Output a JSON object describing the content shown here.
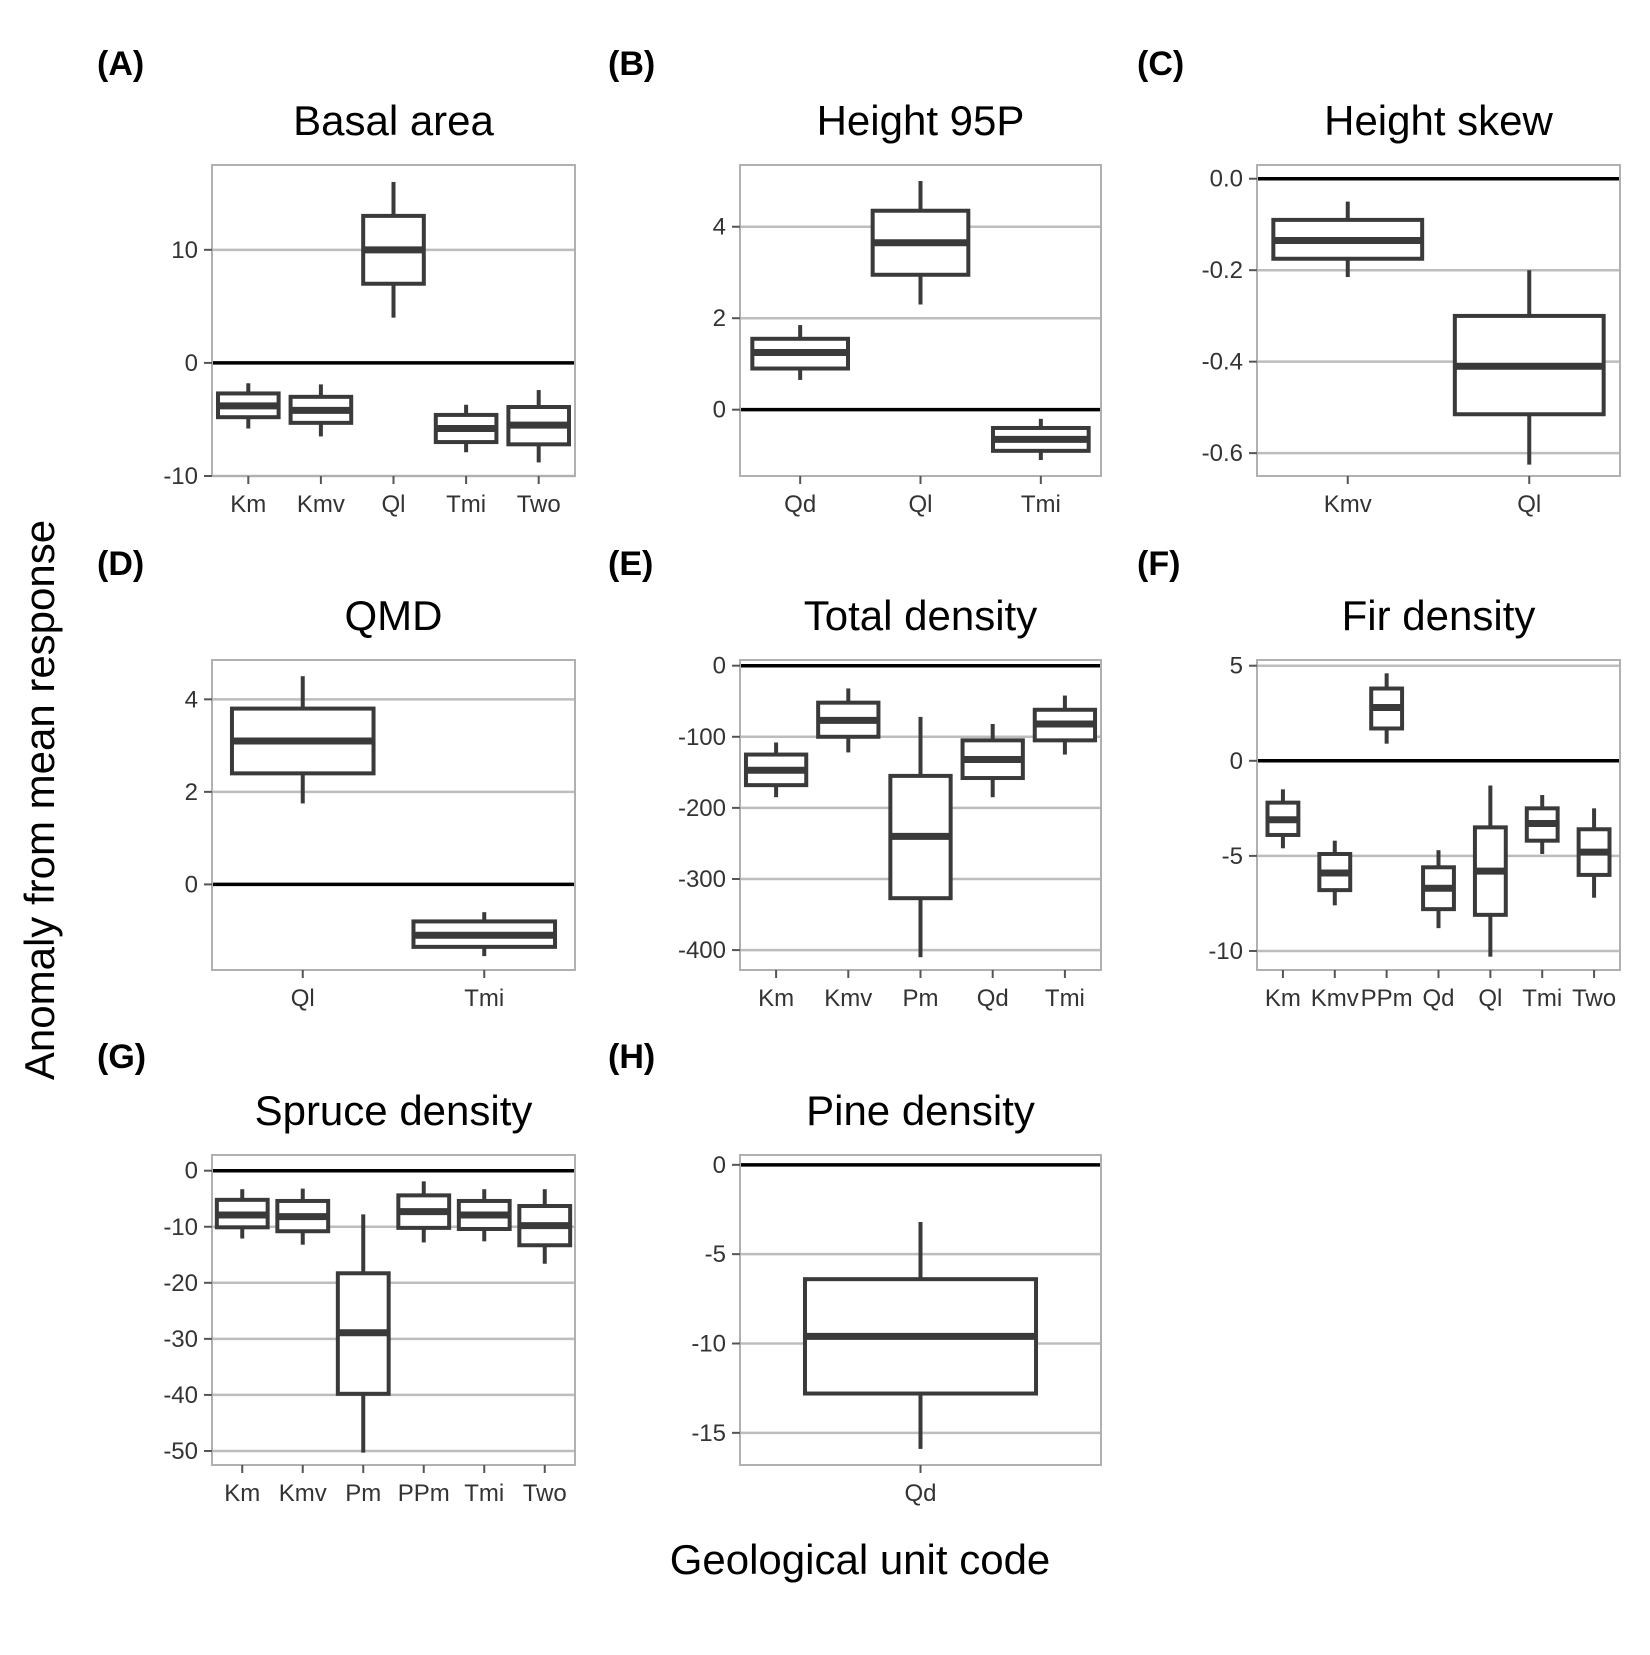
{
  "figure": {
    "ylabel": "Anomaly from mean response",
    "xlabel": "Geological unit code"
  },
  "chart_data": [
    {
      "type": "box",
      "letter": "(A)",
      "title": "Basal area",
      "categories": [
        "Km",
        "Kmv",
        "Ql",
        "Tmi",
        "Two"
      ],
      "boxes": [
        {
          "low": -5.8,
          "q1": -4.8,
          "median": -3.8,
          "q3": -2.7,
          "high": -1.8
        },
        {
          "low": -6.5,
          "q1": -5.3,
          "median": -4.2,
          "q3": -3.0,
          "high": -1.9
        },
        {
          "low": 4.0,
          "q1": 7.0,
          "median": 10.0,
          "q3": 13.0,
          "high": 16.0
        },
        {
          "low": -7.9,
          "q1": -7.0,
          "median": -5.8,
          "q3": -4.6,
          "high": -3.7
        },
        {
          "low": -8.8,
          "q1": -7.2,
          "median": -5.5,
          "q3": -3.9,
          "high": -2.4
        }
      ],
      "ylim": [
        -10,
        17.5
      ],
      "yticks": [
        -10,
        0,
        10
      ],
      "yticklabels": [
        "-10",
        "0",
        "10"
      ],
      "zero_line": 0
    },
    {
      "type": "box",
      "letter": "(B)",
      "title": "Height 95P",
      "categories": [
        "Qd",
        "Ql",
        "Tmi"
      ],
      "boxes": [
        {
          "low": 0.65,
          "q1": 0.9,
          "median": 1.25,
          "q3": 1.55,
          "high": 1.85
        },
        {
          "low": 2.3,
          "q1": 2.95,
          "median": 3.65,
          "q3": 4.35,
          "high": 5.0
        },
        {
          "low": -1.1,
          "q1": -0.9,
          "median": -0.65,
          "q3": -0.4,
          "high": -0.2
        }
      ],
      "ylim": [
        -1.45,
        5.35
      ],
      "yticks": [
        0,
        2,
        4
      ],
      "yticklabels": [
        "0",
        "2",
        "4"
      ],
      "zero_line": 0
    },
    {
      "type": "box",
      "letter": "(C)",
      "title": "Height skew",
      "categories": [
        "Kmv",
        "Ql"
      ],
      "boxes": [
        {
          "low": -0.215,
          "q1": -0.175,
          "median": -0.135,
          "q3": -0.09,
          "high": -0.05
        },
        {
          "low": -0.625,
          "q1": -0.515,
          "median": -0.41,
          "q3": -0.3,
          "high": -0.2
        }
      ],
      "ylim": [
        -0.65,
        0.03
      ],
      "yticks": [
        -0.6,
        -0.4,
        -0.2,
        0.0
      ],
      "yticklabels": [
        "-0.6",
        "-0.4",
        "-0.2",
        "0.0"
      ],
      "zero_line": 0
    },
    {
      "type": "box",
      "letter": "(D)",
      "title": "QMD",
      "categories": [
        "Ql",
        "Tmi"
      ],
      "boxes": [
        {
          "low": 1.75,
          "q1": 2.4,
          "median": 3.1,
          "q3": 3.8,
          "high": 4.5
        },
        {
          "low": -1.55,
          "q1": -1.35,
          "median": -1.1,
          "q3": -0.8,
          "high": -0.6
        }
      ],
      "ylim": [
        -1.85,
        4.85
      ],
      "yticks": [
        0,
        2,
        4
      ],
      "yticklabels": [
        "0",
        "2",
        "4"
      ],
      "zero_line": 0
    },
    {
      "type": "box",
      "letter": "(E)",
      "title": "Total density",
      "categories": [
        "Km",
        "Kmv",
        "Pm",
        "Qd",
        "Tmi"
      ],
      "boxes": [
        {
          "low": -185,
          "q1": -168,
          "median": -147,
          "q3": -125,
          "high": -108
        },
        {
          "low": -122,
          "q1": -100,
          "median": -77,
          "q3": -52,
          "high": -32
        },
        {
          "low": -410,
          "q1": -327,
          "median": -240,
          "q3": -155,
          "high": -72
        },
        {
          "low": -185,
          "q1": -158,
          "median": -132,
          "q3": -105,
          "high": -82
        },
        {
          "low": -125,
          "q1": -105,
          "median": -82,
          "q3": -62,
          "high": -42
        }
      ],
      "ylim": [
        -428,
        8
      ],
      "yticks": [
        -400,
        -300,
        -200,
        -100,
        0
      ],
      "yticklabels": [
        "-400",
        "-300",
        "-200",
        "-100",
        "0"
      ],
      "zero_line": 0
    },
    {
      "type": "box",
      "letter": "(F)",
      "title": "Fir density",
      "categories": [
        "Km",
        "Kmv",
        "PPm",
        "Qd",
        "Ql",
        "Tmi",
        "Two"
      ],
      "boxes": [
        {
          "low": -4.6,
          "q1": -3.9,
          "median": -3.1,
          "q3": -2.2,
          "high": -1.5
        },
        {
          "low": -7.6,
          "q1": -6.8,
          "median": -5.9,
          "q3": -4.9,
          "high": -4.2
        },
        {
          "low": 0.9,
          "q1": 1.7,
          "median": 2.8,
          "q3": 3.8,
          "high": 4.6
        },
        {
          "low": -8.8,
          "q1": -7.8,
          "median": -6.7,
          "q3": -5.6,
          "high": -4.7
        },
        {
          "low": -10.3,
          "q1": -8.1,
          "median": -5.8,
          "q3": -3.5,
          "high": -1.3
        },
        {
          "low": -4.9,
          "q1": -4.2,
          "median": -3.3,
          "q3": -2.5,
          "high": -1.8
        },
        {
          "low": -7.2,
          "q1": -6.0,
          "median": -4.8,
          "q3": -3.6,
          "high": -2.5
        }
      ],
      "ylim": [
        -11,
        5.3
      ],
      "yticks": [
        -10,
        -5,
        0,
        5
      ],
      "yticklabels": [
        "-10",
        "-5",
        "0",
        "5"
      ],
      "zero_line": 0
    },
    {
      "type": "box",
      "letter": "(G)",
      "title": "Spruce density",
      "categories": [
        "Km",
        "Kmv",
        "Pm",
        "PPm",
        "Tmi",
        "Two"
      ],
      "boxes": [
        {
          "low": -12.1,
          "q1": -10.1,
          "median": -7.9,
          "q3": -5.2,
          "high": -3.3
        },
        {
          "low": -13.2,
          "q1": -10.8,
          "median": -8.2,
          "q3": -5.4,
          "high": -3.2
        },
        {
          "low": -50.3,
          "q1": -39.8,
          "median": -28.9,
          "q3": -18.3,
          "high": -7.8
        },
        {
          "low": -12.8,
          "q1": -10.2,
          "median": -7.3,
          "q3": -4.4,
          "high": -1.9
        },
        {
          "low": -12.6,
          "q1": -10.4,
          "median": -7.9,
          "q3": -5.4,
          "high": -3.3
        },
        {
          "low": -16.6,
          "q1": -13.3,
          "median": -9.8,
          "q3": -6.3,
          "high": -3.3
        }
      ],
      "ylim": [
        -52.5,
        2.8
      ],
      "yticks": [
        -50,
        -40,
        -30,
        -20,
        -10,
        0
      ],
      "yticklabels": [
        "-50",
        "-40",
        "-30",
        "-20",
        "-10",
        "0"
      ],
      "zero_line": 0
    },
    {
      "type": "box",
      "letter": "(H)",
      "title": "Pine density",
      "categories": [
        "Qd"
      ],
      "boxes": [
        {
          "low": -15.9,
          "q1": -12.8,
          "median": -9.6,
          "q3": -6.4,
          "high": -3.2
        }
      ],
      "ylim": [
        -16.8,
        0.55
      ],
      "yticks": [
        -15,
        -10,
        -5,
        0
      ],
      "yticklabels": [
        "-15",
        "-10",
        "-5",
        "0"
      ],
      "zero_line": 0
    }
  ]
}
